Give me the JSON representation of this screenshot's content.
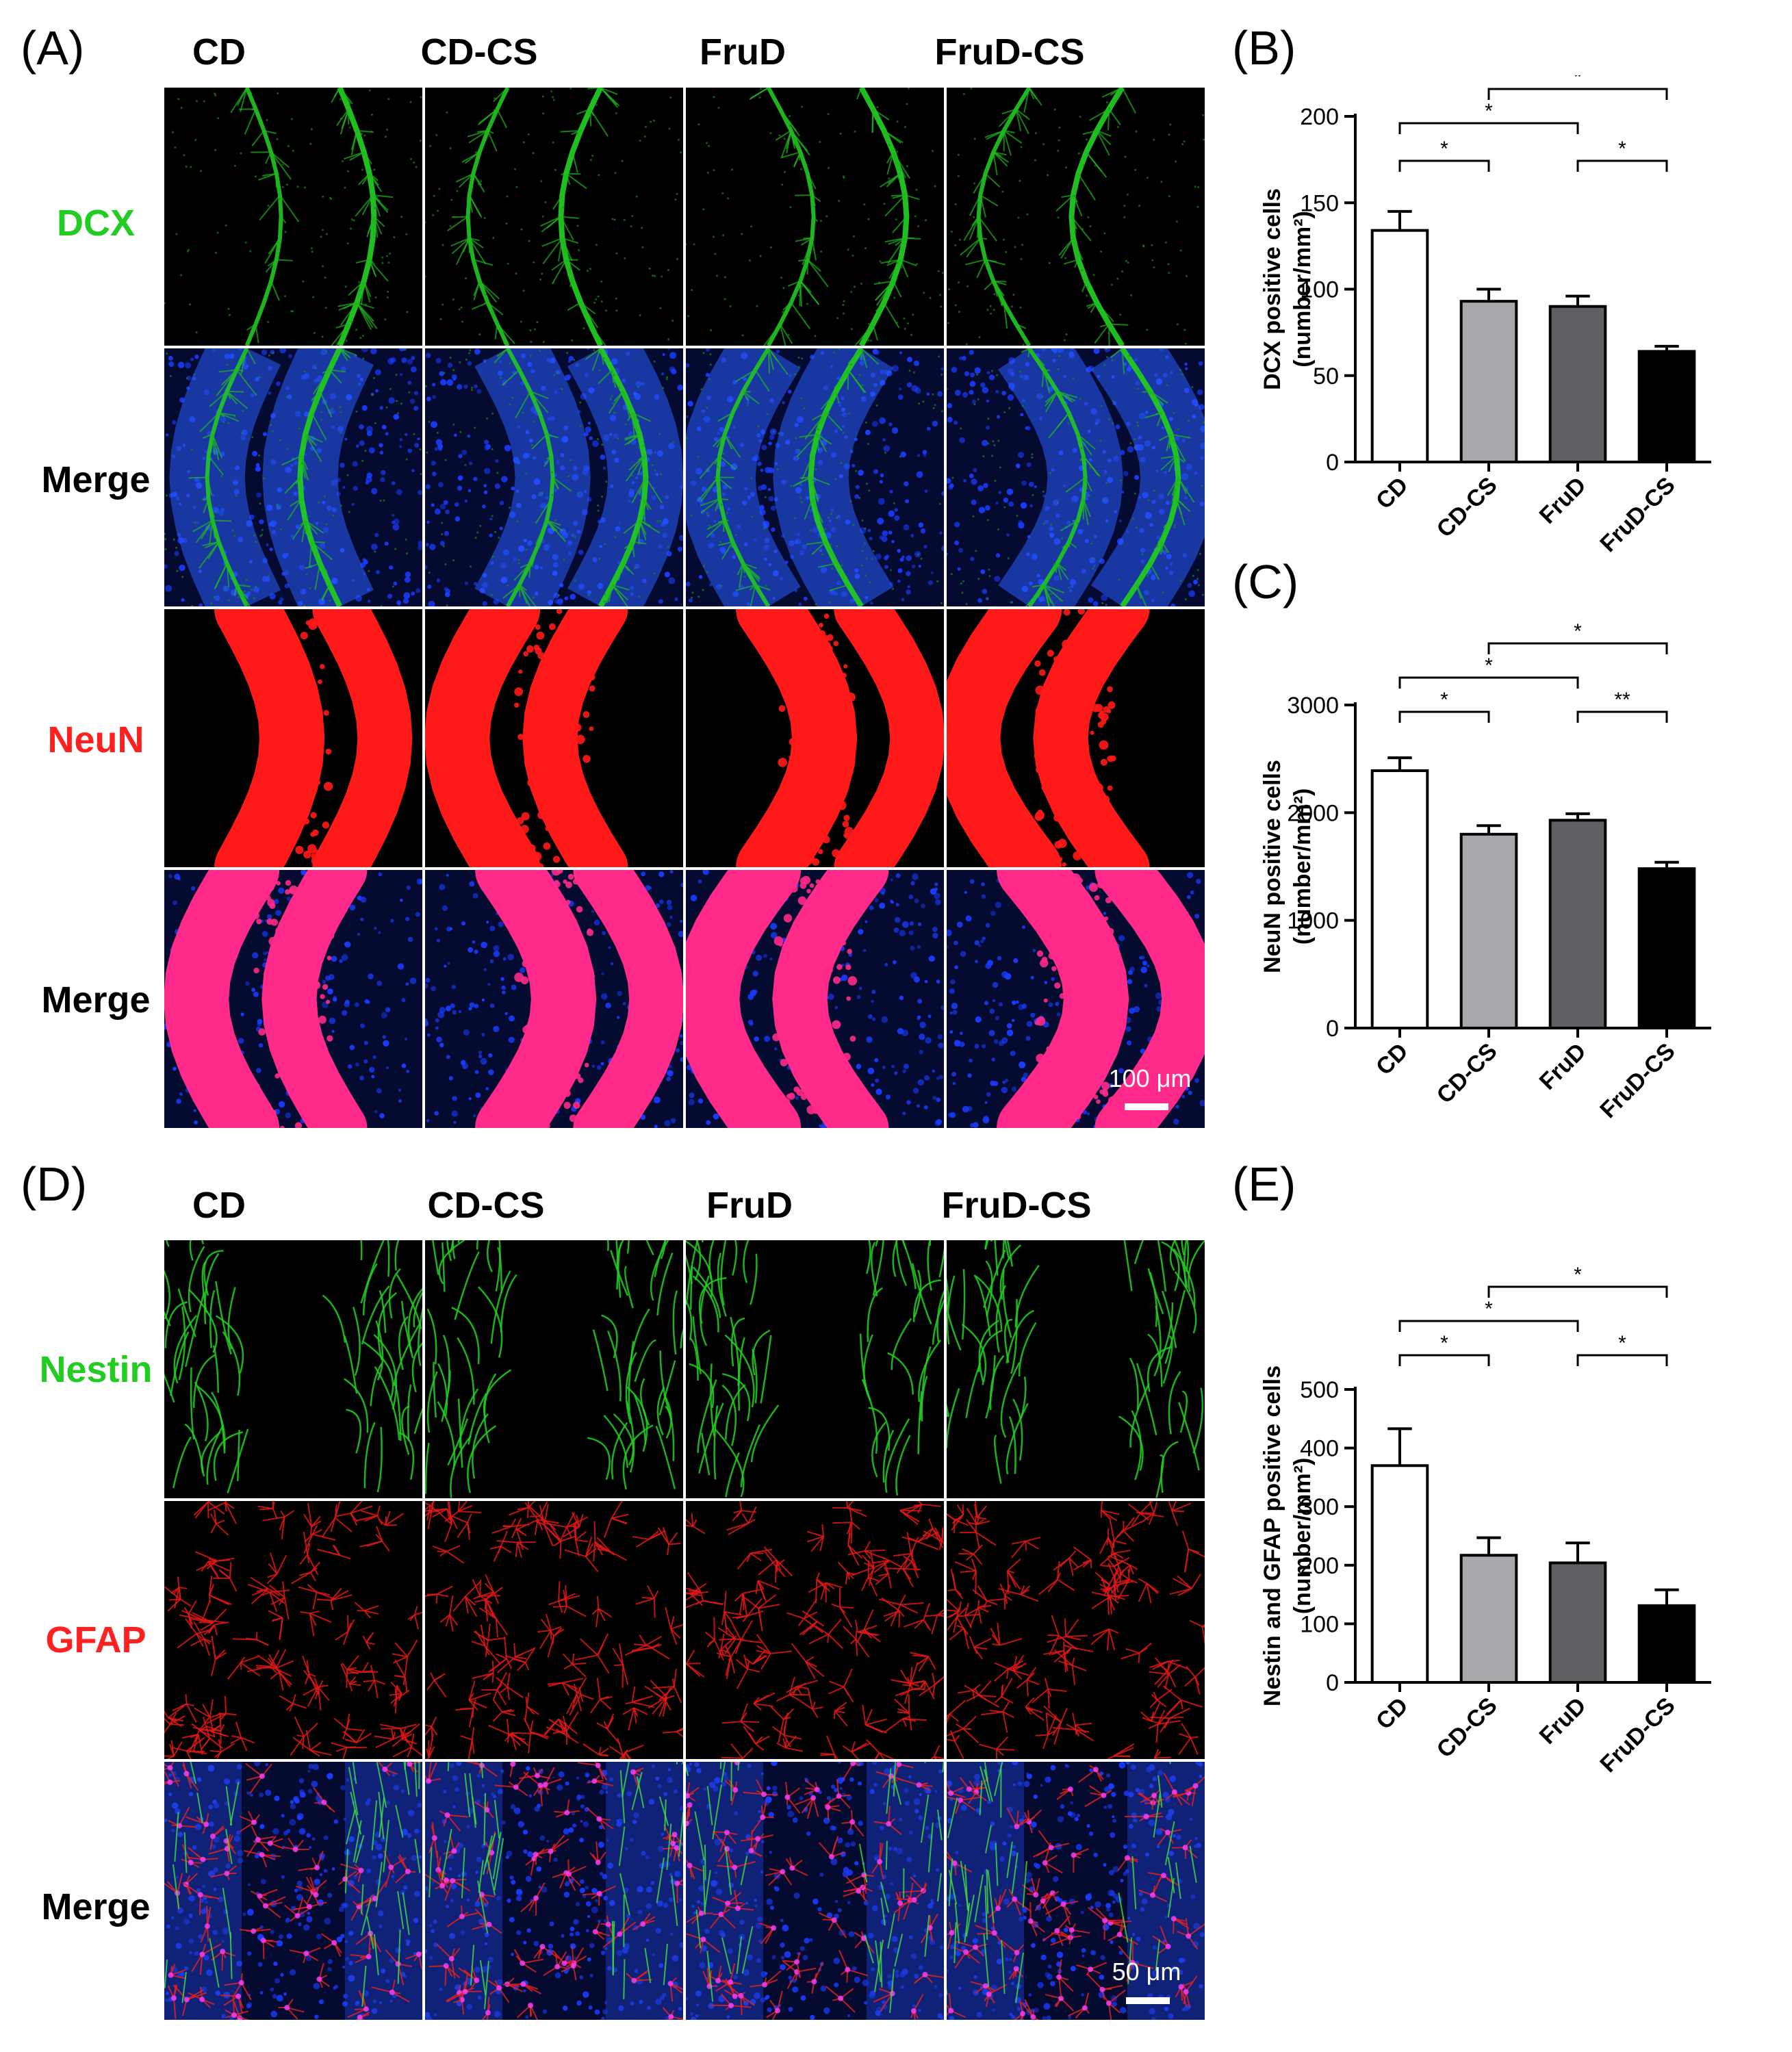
{
  "panel_letters": {
    "A": "(A)",
    "B": "(B)",
    "C": "(C)",
    "D": "(D)",
    "E": "(E)"
  },
  "groups": [
    "CD",
    "CD-CS",
    "FruD",
    "FruD-CS"
  ],
  "panel_a": {
    "rows": [
      {
        "label": "DCX",
        "color": "#22cc22",
        "stain": "green"
      },
      {
        "label": "Merge",
        "color": "#000000",
        "stain": "green_blue"
      },
      {
        "label": "NeuN",
        "color": "#ff2020",
        "stain": "red"
      },
      {
        "label": "Merge",
        "color": "#000000",
        "stain": "red_blue"
      }
    ],
    "scale_bar": "100 μm"
  },
  "panel_d": {
    "rows": [
      {
        "label": "Nestin",
        "color": "#22cc22",
        "stain": "green_fibers"
      },
      {
        "label": "GFAP",
        "color": "#ff2020",
        "stain": "red_astro"
      },
      {
        "label": "Merge",
        "color": "#000000",
        "stain": "triple"
      }
    ],
    "scale_bar": "50 μm"
  },
  "chart_data": [
    {
      "panel": "B",
      "type": "bar",
      "categories": [
        "CD",
        "CD-CS",
        "FruD",
        "FruD-CS"
      ],
      "values": [
        134,
        93,
        90,
        64
      ],
      "errors": [
        11,
        7,
        6,
        3
      ],
      "bar_colors": [
        "#ffffff",
        "#a8a8ac",
        "#606064",
        "#000000"
      ],
      "ylabel_line1": "DCX positive cells",
      "ylabel_line2": "(number/mm²)",
      "ylim": [
        0,
        200
      ],
      "yticks": [
        0,
        50,
        100,
        150,
        200
      ],
      "significance": [
        {
          "from": 0,
          "to": 1,
          "label": "*"
        },
        {
          "from": 0,
          "to": 2,
          "label": "*"
        },
        {
          "from": 1,
          "to": 3,
          "label": "*"
        },
        {
          "from": 2,
          "to": 3,
          "label": "*"
        }
      ]
    },
    {
      "panel": "C",
      "type": "bar",
      "categories": [
        "CD",
        "CD-CS",
        "FruD",
        "FruD-CS"
      ],
      "values": [
        2390,
        1800,
        1930,
        1480
      ],
      "errors": [
        120,
        80,
        60,
        60
      ],
      "bar_colors": [
        "#ffffff",
        "#a8a8ac",
        "#606064",
        "#000000"
      ],
      "ylabel_line1": "NeuN positive cells",
      "ylabel_line2": "(number/mm²)",
      "ylim": [
        0,
        3000
      ],
      "yticks": [
        0,
        1000,
        2000,
        3000
      ],
      "significance": [
        {
          "from": 0,
          "to": 1,
          "label": "*"
        },
        {
          "from": 0,
          "to": 2,
          "label": "*"
        },
        {
          "from": 1,
          "to": 3,
          "label": "*"
        },
        {
          "from": 2,
          "to": 3,
          "label": "**"
        }
      ]
    },
    {
      "panel": "E",
      "type": "bar",
      "categories": [
        "CD",
        "CD-CS",
        "FruD",
        "FruD-CS"
      ],
      "values": [
        370,
        217,
        204,
        131
      ],
      "errors": [
        63,
        30,
        34,
        27
      ],
      "bar_colors": [
        "#ffffff",
        "#a8a8ac",
        "#606064",
        "#000000"
      ],
      "ylabel_line1": "Nestin and GFAP positive cells",
      "ylabel_line2": "(number/mm²)",
      "ylim": [
        0,
        500
      ],
      "yticks": [
        0,
        100,
        200,
        300,
        400,
        500
      ],
      "significance": [
        {
          "from": 0,
          "to": 1,
          "label": "*"
        },
        {
          "from": 0,
          "to": 2,
          "label": "*"
        },
        {
          "from": 1,
          "to": 3,
          "label": "*"
        },
        {
          "from": 2,
          "to": 3,
          "label": "*"
        }
      ]
    }
  ]
}
